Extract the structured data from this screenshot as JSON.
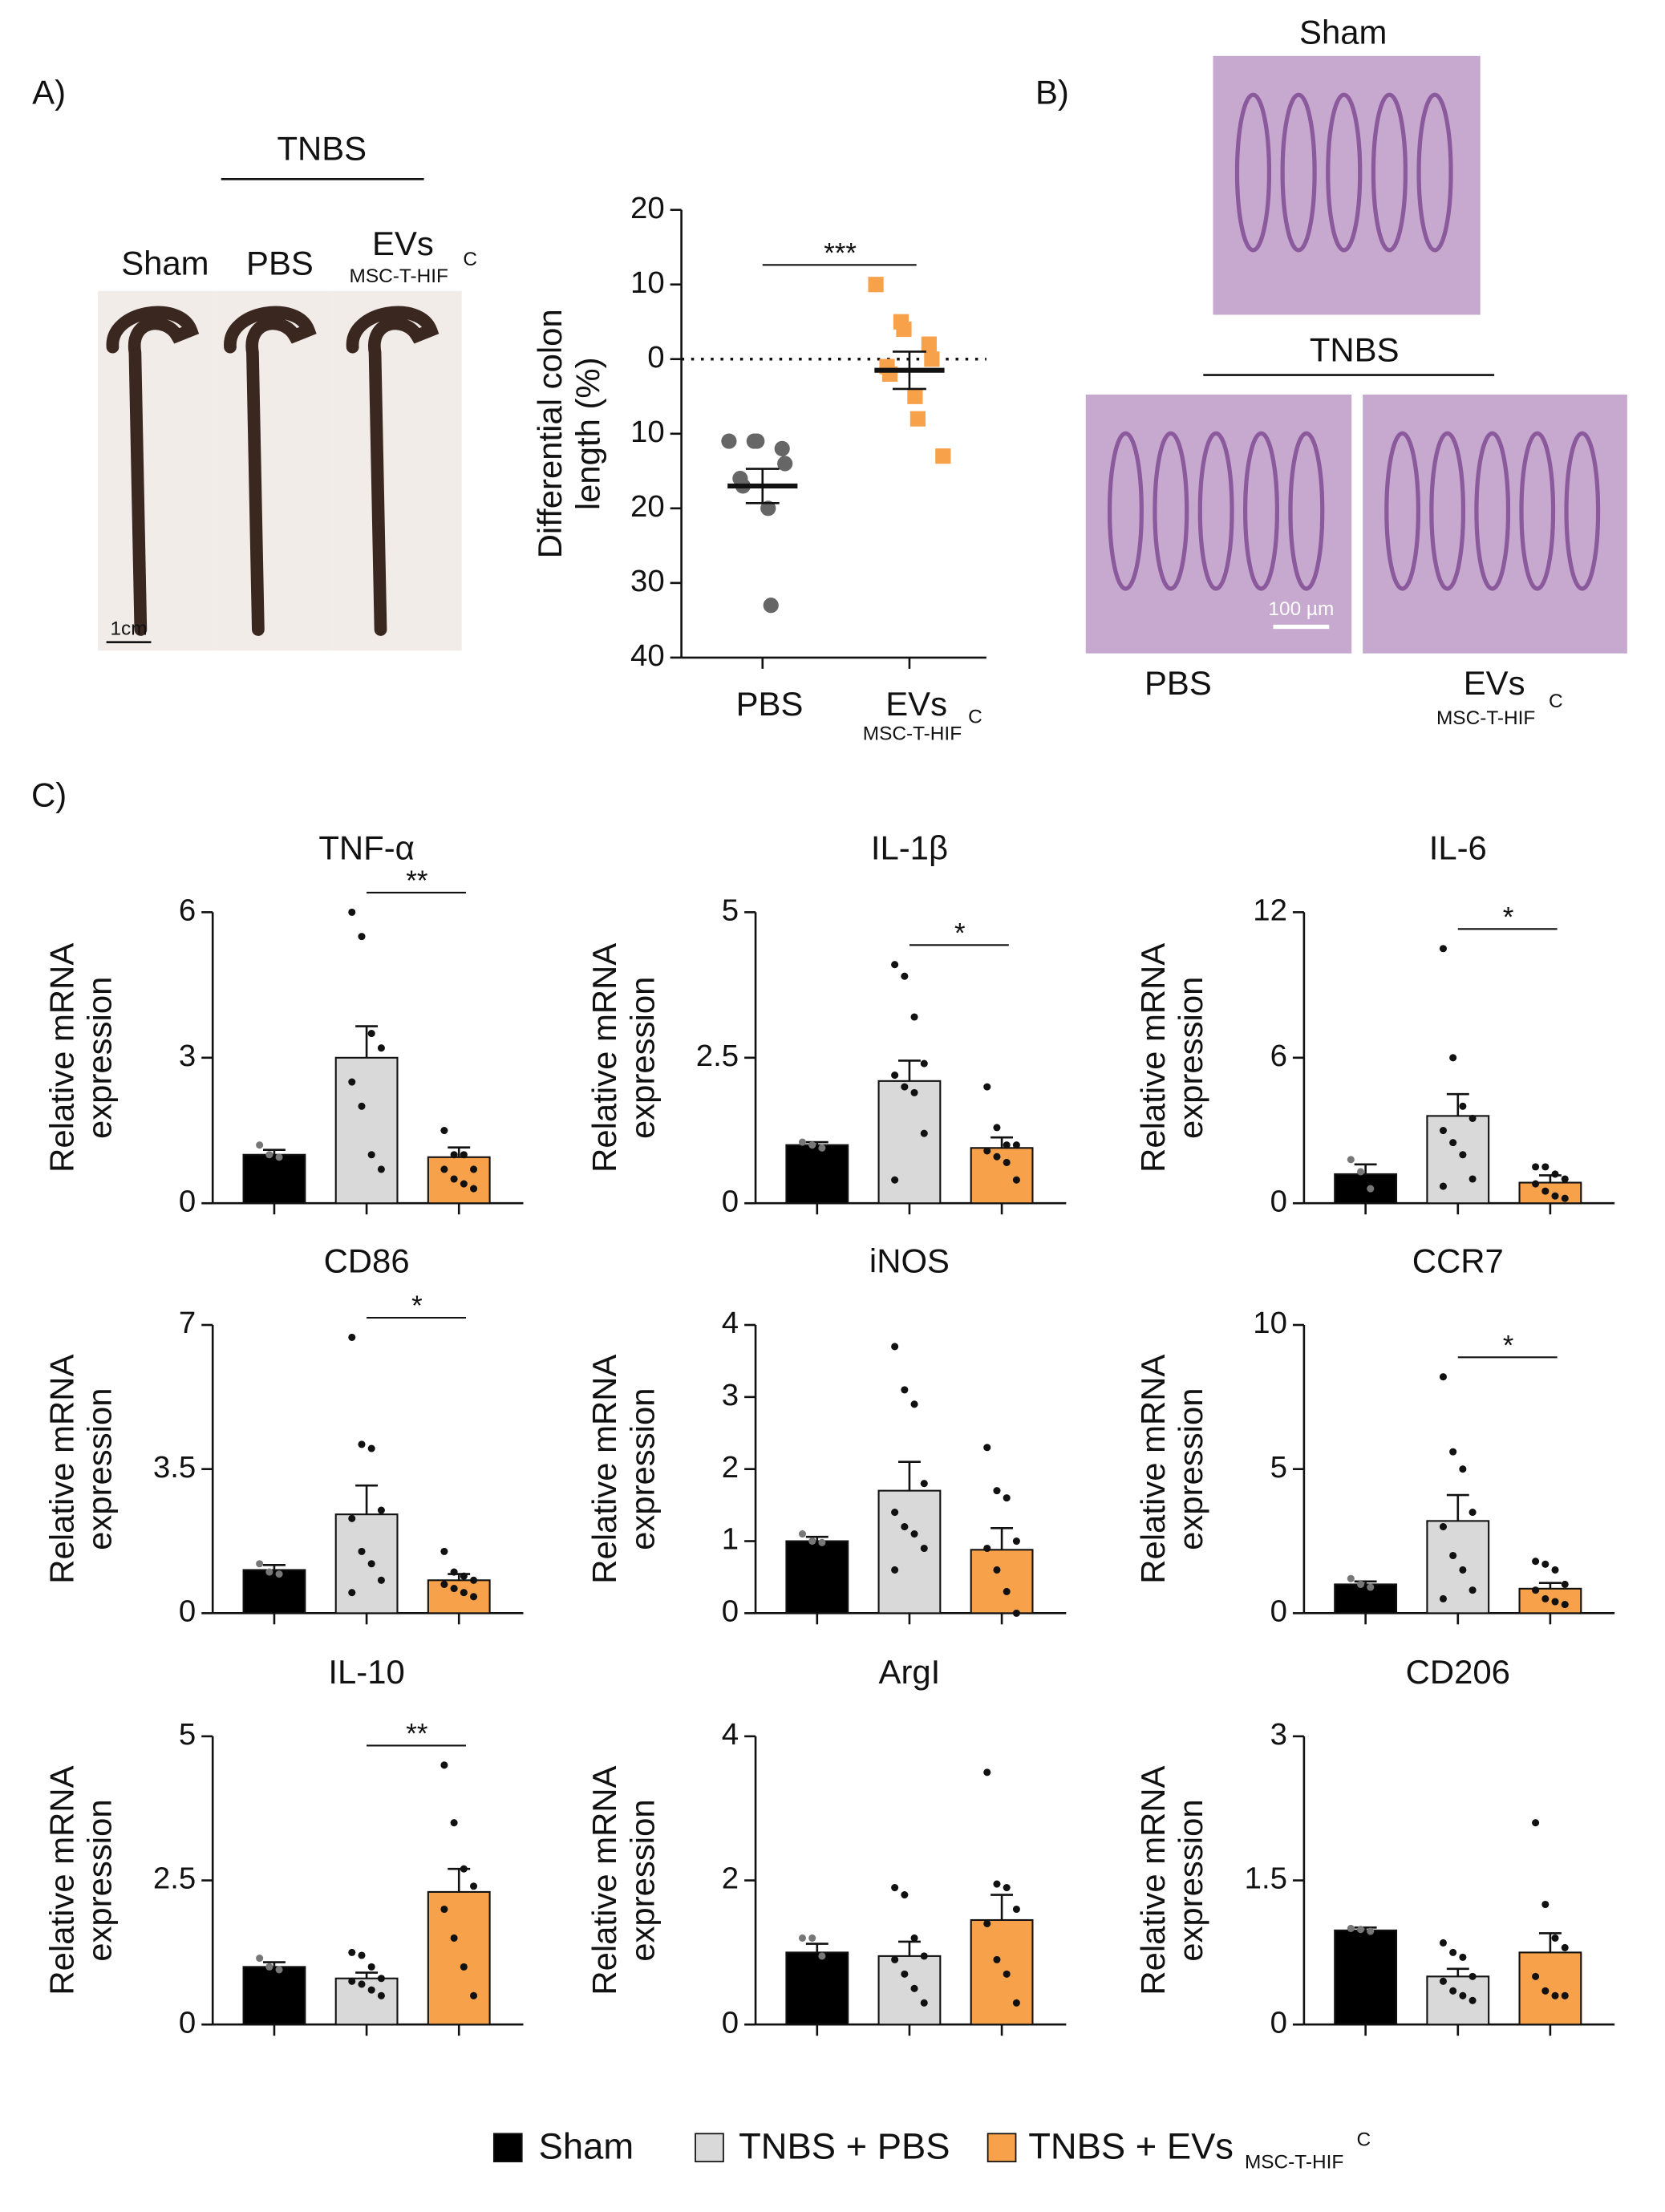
{
  "panel_a": {
    "label": "A)",
    "group": "TNBS",
    "photo_labels": [
      "Sham",
      "PBS",
      "EVs"
    ],
    "photo_sub": "MSC-T-HIF",
    "photo_sup": "C",
    "scale": "1cm"
  },
  "panel_b": {
    "label": "B)",
    "top": "Sham",
    "group": "TNBS",
    "photo_labels": [
      "PBS",
      "EVs"
    ],
    "photo_sub": "MSC-T-HIF",
    "photo_sup": "C",
    "scale": "100 µm"
  },
  "panel_c": {
    "label": "C)"
  },
  "legend": {
    "items": [
      {
        "name": "Sham",
        "color": "#000000"
      },
      {
        "name": "TNBS + PBS",
        "color": "#d9d9d9"
      },
      {
        "name": "TNBS + EVs",
        "color": "#f7a24a",
        "sub": "MSC-T-HIF",
        "sup": "C"
      }
    ]
  },
  "chart_data": [
    {
      "type": "dot",
      "ylabel": [
        "Differential colon",
        "length (%)"
      ],
      "categories": [
        "PBS",
        "EVs"
      ],
      "category_sub": [
        null,
        "MSC-T-HIF"
      ],
      "category_sup": [
        null,
        "C"
      ],
      "colors": [
        "#666666",
        "#f7a24a"
      ],
      "values": [
        -17,
        -1.5
      ],
      "errors": [
        2.3,
        2.5
      ],
      "points": [
        [
          -11,
          -11,
          -11,
          -12,
          -14,
          -16,
          -17,
          -20,
          -33
        ],
        [
          10,
          5,
          4,
          2,
          0,
          -1,
          -2,
          -5,
          -8,
          -13
        ]
      ],
      "ylim": [
        -40,
        20
      ],
      "yticks": [
        {
          "value": -40,
          "label": "40"
        },
        {
          "value": -30,
          "label": "30"
        },
        {
          "value": -20,
          "label": "20"
        },
        {
          "value": -10,
          "label": "10"
        },
        0,
        10,
        20
      ],
      "reference_line": 0,
      "significance": [
        {
          "text": "***",
          "from": 0,
          "to": 1
        }
      ]
    },
    {
      "type": "bar",
      "title": "TNF-α",
      "ylabel": [
        "Relative mRNA",
        "expression"
      ],
      "ylim": [
        0,
        6
      ],
      "yticks": [
        0,
        3,
        6
      ],
      "values": [
        1.0,
        3.0,
        0.95
      ],
      "errors": [
        0.1,
        0.65,
        0.2
      ],
      "points": [
        [
          1.2,
          1.0,
          0.95
        ],
        [
          6.0,
          5.5,
          3.5,
          3.2,
          2.5,
          2.0,
          1.0,
          0.7
        ],
        [
          1.5,
          1.0,
          1.0,
          0.7,
          0.7,
          0.5,
          0.4,
          0.3
        ]
      ],
      "significance": [
        {
          "text": "**",
          "from": 1,
          "to": 2
        }
      ]
    },
    {
      "type": "bar",
      "title": "IL-1β",
      "ylabel": [
        "Relative mRNA",
        "expression"
      ],
      "ylim": [
        0,
        5
      ],
      "yticks": [
        0,
        2.5,
        5
      ],
      "values": [
        1.0,
        2.1,
        0.95
      ],
      "errors": [
        0.05,
        0.35,
        0.18
      ],
      "points": [
        [
          1.05,
          1.0,
          0.95
        ],
        [
          4.1,
          3.9,
          3.2,
          2.4,
          2.2,
          2.0,
          1.9,
          1.2,
          0.4
        ],
        [
          2.0,
          1.3,
          1.0,
          1.0,
          0.9,
          0.8,
          0.7,
          0.4
        ]
      ],
      "significance": [
        {
          "text": "*",
          "from": 1,
          "to": 2
        }
      ]
    },
    {
      "type": "bar",
      "title": "IL-6",
      "ylabel": [
        "Relative mRNA",
        "expression"
      ],
      "ylim": [
        0,
        12
      ],
      "yticks": [
        0,
        6,
        12
      ],
      "values": [
        1.2,
        3.6,
        0.85
      ],
      "errors": [
        0.4,
        0.9,
        0.3
      ],
      "points": [
        [
          1.8,
          1.3,
          0.6
        ],
        [
          10.5,
          6.0,
          4.0,
          3.5,
          3.0,
          2.5,
          2.0,
          1.0,
          0.7
        ],
        [
          1.5,
          1.5,
          1.2,
          1.0,
          0.8,
          0.5,
          0.3,
          0.2
        ]
      ],
      "significance": [
        {
          "text": "*",
          "from": 1,
          "to": 2
        }
      ]
    },
    {
      "type": "bar",
      "title": "CD86",
      "ylabel": [
        "Relative mRNA",
        "expression"
      ],
      "ylim": [
        0,
        7
      ],
      "yticks": [
        0,
        3.5,
        7
      ],
      "values": [
        1.05,
        2.4,
        0.8
      ],
      "errors": [
        0.12,
        0.7,
        0.15
      ],
      "points": [
        [
          1.2,
          1.0,
          0.95
        ],
        [
          6.7,
          4.1,
          4.0,
          2.5,
          2.3,
          1.5,
          1.2,
          0.8,
          0.5
        ],
        [
          1.5,
          1.0,
          0.9,
          0.8,
          0.7,
          0.6,
          0.5,
          0.4
        ]
      ],
      "significance": [
        {
          "text": "*",
          "from": 1,
          "to": 2
        }
      ]
    },
    {
      "type": "bar",
      "title": "iNOS",
      "ylabel": [
        "Relative mRNA",
        "expression"
      ],
      "ylim": [
        0,
        4
      ],
      "yticks": [
        0,
        1,
        2,
        3,
        4
      ],
      "values": [
        1.0,
        1.7,
        0.88
      ],
      "errors": [
        0.06,
        0.4,
        0.3
      ],
      "points": [
        [
          1.1,
          1.0,
          0.98
        ],
        [
          3.7,
          3.1,
          2.9,
          1.8,
          1.4,
          1.2,
          1.1,
          0.9,
          0.6
        ],
        [
          2.3,
          1.7,
          1.6,
          1.0,
          0.9,
          0.6,
          0.3,
          0.0
        ]
      ]
    },
    {
      "type": "bar",
      "title": "CCR7",
      "ylabel": [
        "Relative mRNA",
        "expression"
      ],
      "ylim": [
        0,
        10
      ],
      "yticks": [
        0,
        5,
        10
      ],
      "values": [
        1.0,
        3.2,
        0.85
      ],
      "errors": [
        0.1,
        0.9,
        0.2
      ],
      "points": [
        [
          1.2,
          1.0,
          0.9
        ],
        [
          8.2,
          5.6,
          5.0,
          3.5,
          3.0,
          2.0,
          1.5,
          0.8,
          0.5
        ],
        [
          1.8,
          1.7,
          1.5,
          1.0,
          0.8,
          0.5,
          0.4,
          0.3
        ]
      ],
      "significance": [
        {
          "text": "*",
          "from": 1,
          "to": 2
        }
      ]
    },
    {
      "type": "bar",
      "title": "IL-10",
      "ylabel": [
        "Relative mRNA",
        "expression"
      ],
      "ylim": [
        0,
        5
      ],
      "yticks": [
        0,
        2.5,
        5
      ],
      "values": [
        1.0,
        0.8,
        2.3
      ],
      "errors": [
        0.08,
        0.1,
        0.4
      ],
      "points": [
        [
          1.15,
          1.0,
          0.95
        ],
        [
          1.25,
          1.2,
          1.0,
          0.8,
          0.75,
          0.7,
          0.6,
          0.5
        ],
        [
          4.5,
          3.5,
          2.7,
          2.4,
          2.0,
          1.5,
          1.0,
          0.5
        ]
      ],
      "significance": [
        {
          "text": "**",
          "from": 1,
          "to": 2
        }
      ]
    },
    {
      "type": "bar",
      "title": "ArgI",
      "ylabel": [
        "Relative mRNA",
        "expression"
      ],
      "ylim": [
        0,
        4
      ],
      "yticks": [
        0,
        2,
        4
      ],
      "values": [
        1.0,
        0.95,
        1.45
      ],
      "errors": [
        0.12,
        0.2,
        0.35
      ],
      "points": [
        [
          1.2,
          1.2,
          0.95
        ],
        [
          1.9,
          1.8,
          1.2,
          0.95,
          0.9,
          0.7,
          0.5,
          0.3
        ],
        [
          3.5,
          1.95,
          1.9,
          1.6,
          1.4,
          0.9,
          0.7,
          0.3
        ]
      ]
    },
    {
      "type": "bar",
      "title": "CD206",
      "ylabel": [
        "Relative mRNA",
        "expression"
      ],
      "ylim": [
        0,
        3
      ],
      "yticks": [
        0,
        1.5,
        3
      ],
      "values": [
        0.98,
        0.5,
        0.75
      ],
      "errors": [
        0.03,
        0.08,
        0.2
      ],
      "points": [
        [
          1.0,
          0.99,
          0.97
        ],
        [
          0.85,
          0.75,
          0.7,
          0.5,
          0.45,
          0.35,
          0.3,
          0.25
        ],
        [
          2.1,
          1.25,
          0.9,
          0.8,
          0.5,
          0.35,
          0.3,
          0.3
        ]
      ]
    }
  ]
}
